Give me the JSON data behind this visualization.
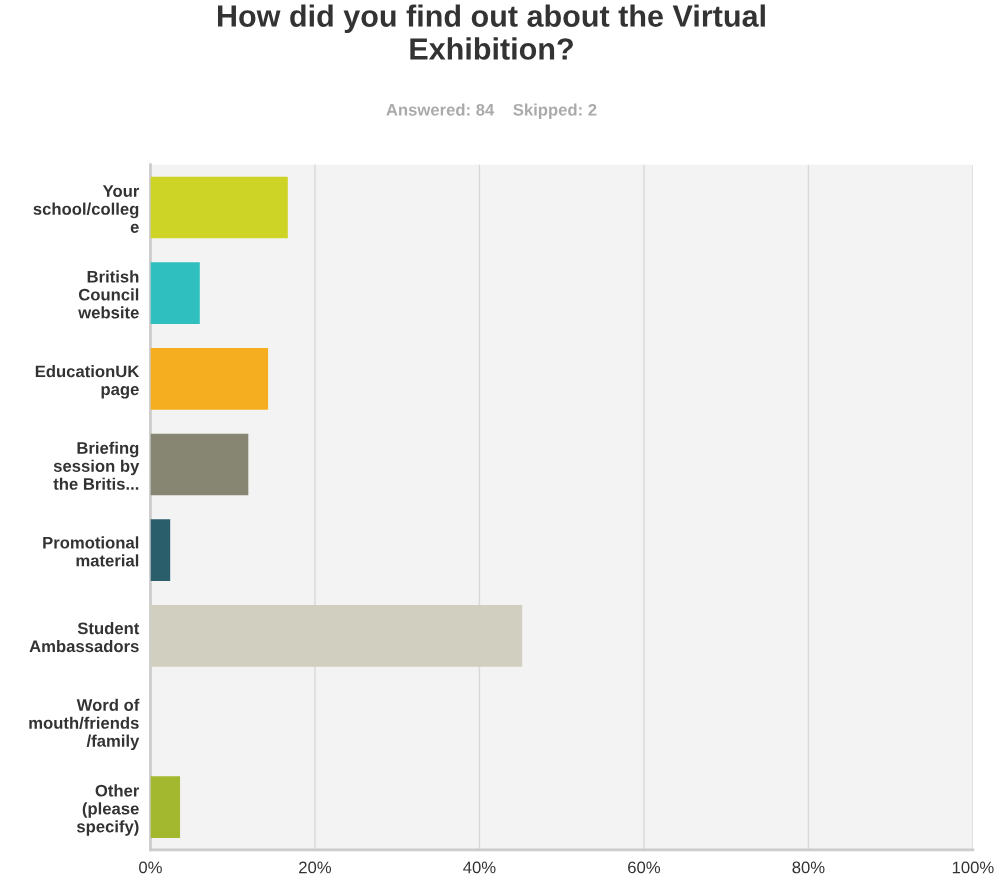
{
  "chart_data": {
    "type": "bar",
    "orientation": "horizontal",
    "title": "How did you find out about the Virtual\nExhibition?",
    "subtitle": "Answered: 84    Skipped: 2",
    "categories": [
      "Your\nschool/colleg\ne",
      "British\nCouncil\nwebsite",
      "EducationUK\npage",
      "Briefing\nsession by\nthe Britis...",
      "Promotional\nmaterial",
      "Student\nAmbassadors",
      "Word of\nmouth/friends\n/family",
      "Other\n(please\nspecify)"
    ],
    "values": [
      16.7,
      6.0,
      14.3,
      11.9,
      2.4,
      45.2,
      0,
      3.6
    ],
    "colors": [
      "#cdd425",
      "#2fbfbf",
      "#f5ae1f",
      "#868672",
      "#2a5e6b",
      "#d1cfc0",
      "#9fb0c8",
      "#a3b82f"
    ],
    "xlim": [
      0,
      100
    ],
    "xticks": [
      {
        "value": 0,
        "label": "0%"
      },
      {
        "value": 20,
        "label": "20%"
      },
      {
        "value": 40,
        "label": "40%"
      },
      {
        "value": 60,
        "label": "60%"
      },
      {
        "value": 80,
        "label": "80%"
      },
      {
        "value": 100,
        "label": "100%"
      }
    ],
    "grid": "x"
  }
}
